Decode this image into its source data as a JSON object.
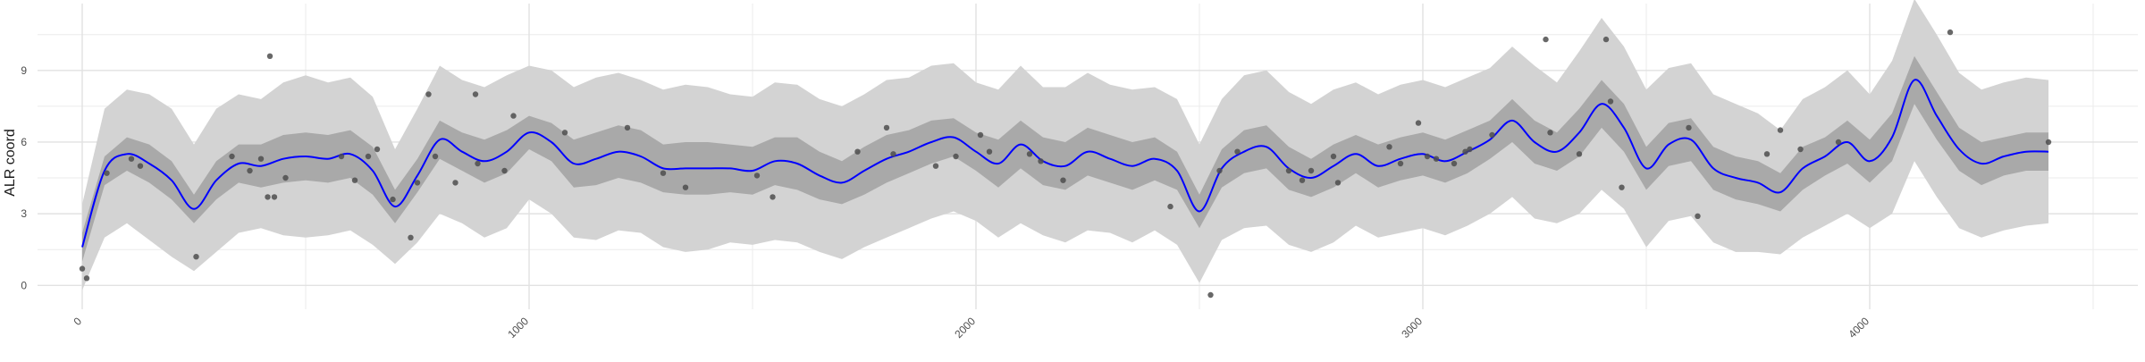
{
  "chart_data": {
    "type": "line",
    "title": "",
    "xlabel": "",
    "ylabel": "ALR coord",
    "xlim": [
      -100,
      4600
    ],
    "ylim": [
      -1.0,
      11.8
    ],
    "x_ticks": [
      0,
      1000,
      2000,
      3000,
      4000
    ],
    "x_tick_labels": [
      "0",
      "1000",
      "2000",
      "3000",
      "4000"
    ],
    "y_ticks": [
      0,
      3,
      6,
      9
    ],
    "y_tick_labels": [
      "0",
      "3",
      "6",
      "9"
    ],
    "grid": true,
    "legend": "none",
    "colors": {
      "mean_line": "#0000ff",
      "inner_band": "#a9a9a9",
      "outer_band": "#d3d3d3",
      "points": "#4d4d4d",
      "grid": "#ebebeb",
      "text": "#4d4d4d"
    },
    "series": [
      {
        "kind": "line",
        "x": [
          0,
          50,
          100,
          150,
          200,
          250,
          300,
          350,
          400,
          450,
          500,
          550,
          600,
          650,
          700,
          750,
          800,
          850,
          900,
          950,
          1000,
          1050,
          1100,
          1150,
          1200,
          1250,
          1300,
          1350,
          1400,
          1450,
          1500,
          1550,
          1600,
          1650,
          1700,
          1750,
          1800,
          1850,
          1900,
          1950,
          2000,
          2050,
          2100,
          2150,
          2200,
          2250,
          2300,
          2350,
          2400,
          2450,
          2500,
          2550,
          2600,
          2650,
          2700,
          2750,
          2800,
          2850,
          2900,
          2950,
          3000,
          3050,
          3100,
          3150,
          3200,
          3250,
          3300,
          3350,
          3400,
          3450,
          3500,
          3550,
          3600,
          3650,
          3700,
          3750,
          3800,
          3850,
          3900,
          3950,
          4000,
          4050,
          4100,
          4150,
          4200,
          4250,
          4300,
          4350,
          4400
        ],
        "y": [
          1.6,
          4.8,
          5.5,
          5.1,
          4.4,
          3.2,
          4.4,
          5.1,
          5.0,
          5.3,
          5.4,
          5.3,
          5.5,
          4.8,
          3.3,
          4.6,
          6.1,
          5.6,
          5.2,
          5.6,
          6.4,
          6.0,
          5.1,
          5.3,
          5.6,
          5.4,
          4.9,
          4.9,
          4.9,
          4.9,
          4.8,
          5.2,
          5.1,
          4.6,
          4.3,
          4.8,
          5.3,
          5.6,
          6.0,
          6.2,
          5.6,
          5.1,
          5.9,
          5.2,
          5.0,
          5.6,
          5.3,
          5.0,
          5.3,
          4.8,
          3.1,
          4.9,
          5.6,
          5.8,
          4.9,
          4.5,
          5.0,
          5.5,
          5.0,
          5.3,
          5.5,
          5.2,
          5.6,
          6.1,
          6.9,
          6.0,
          5.6,
          6.4,
          7.6,
          6.6,
          4.9,
          5.9,
          6.1,
          4.9,
          4.5,
          4.3,
          3.9,
          4.9,
          5.4,
          6.0,
          5.2,
          6.2,
          8.6,
          7.1,
          5.7,
          5.1,
          5.4,
          5.6,
          5.6
        ]
      },
      {
        "kind": "inner_band",
        "x": [
          0,
          50,
          100,
          150,
          200,
          250,
          300,
          350,
          400,
          450,
          500,
          550,
          600,
          650,
          700,
          750,
          800,
          850,
          900,
          950,
          1000,
          1050,
          1100,
          1150,
          1200,
          1250,
          1300,
          1350,
          1400,
          1450,
          1500,
          1550,
          1600,
          1650,
          1700,
          1750,
          1800,
          1850,
          1900,
          1950,
          2000,
          2050,
          2100,
          2150,
          2200,
          2250,
          2300,
          2350,
          2400,
          2450,
          2500,
          2550,
          2600,
          2650,
          2700,
          2750,
          2800,
          2850,
          2900,
          2950,
          3000,
          3050,
          3100,
          3150,
          3200,
          3250,
          3300,
          3350,
          3400,
          3450,
          3500,
          3550,
          3600,
          3650,
          3700,
          3750,
          3800,
          3850,
          3900,
          3950,
          4000,
          4050,
          4100,
          4150,
          4200,
          4250,
          4300,
          4350,
          4400
        ],
        "low": [
          1.0,
          4.2,
          4.8,
          4.3,
          3.6,
          2.6,
          3.6,
          4.3,
          4.1,
          4.3,
          4.4,
          4.3,
          4.5,
          3.8,
          2.6,
          3.9,
          5.3,
          4.8,
          4.3,
          4.7,
          5.7,
          5.2,
          4.1,
          4.2,
          4.5,
          4.3,
          3.9,
          3.8,
          3.8,
          3.9,
          3.8,
          4.2,
          4.0,
          3.6,
          3.4,
          3.8,
          4.3,
          4.7,
          5.1,
          5.4,
          4.8,
          4.1,
          4.9,
          4.2,
          4.0,
          4.6,
          4.3,
          4.0,
          4.4,
          4.0,
          2.4,
          4.1,
          4.7,
          4.9,
          4.0,
          3.7,
          4.1,
          4.7,
          4.1,
          4.4,
          4.6,
          4.3,
          4.7,
          5.3,
          6.0,
          5.1,
          4.8,
          5.4,
          6.6,
          5.6,
          4.0,
          5.0,
          5.2,
          4.0,
          3.6,
          3.4,
          3.1,
          4.0,
          4.6,
          5.1,
          4.3,
          5.2,
          7.6,
          6.1,
          4.8,
          4.2,
          4.6,
          4.8,
          4.8
        ],
        "high": [
          2.2,
          5.4,
          6.2,
          5.9,
          5.2,
          3.8,
          5.2,
          5.9,
          5.9,
          6.3,
          6.4,
          6.3,
          6.5,
          5.8,
          4.0,
          5.3,
          6.9,
          6.4,
          6.1,
          6.5,
          7.1,
          6.8,
          6.1,
          6.4,
          6.7,
          6.5,
          5.9,
          6.0,
          6.0,
          5.9,
          5.8,
          6.2,
          6.2,
          5.6,
          5.2,
          5.8,
          6.3,
          6.5,
          6.9,
          7.0,
          6.4,
          6.1,
          6.9,
          6.2,
          6.0,
          6.6,
          6.3,
          6.0,
          6.2,
          5.6,
          3.8,
          5.7,
          6.5,
          6.7,
          5.8,
          5.3,
          5.9,
          6.3,
          5.9,
          6.2,
          6.4,
          6.1,
          6.5,
          6.9,
          7.8,
          6.9,
          6.4,
          7.4,
          8.6,
          7.6,
          5.8,
          6.8,
          7.0,
          5.8,
          5.4,
          5.2,
          4.7,
          5.8,
          6.2,
          6.9,
          6.1,
          7.2,
          9.6,
          8.1,
          6.6,
          6.0,
          6.2,
          6.4,
          6.4
        ]
      },
      {
        "kind": "outer_band",
        "x": [
          0,
          50,
          100,
          150,
          200,
          250,
          300,
          350,
          400,
          450,
          500,
          550,
          600,
          650,
          700,
          750,
          800,
          850,
          900,
          950,
          1000,
          1050,
          1100,
          1150,
          1200,
          1250,
          1300,
          1350,
          1400,
          1450,
          1500,
          1550,
          1600,
          1650,
          1700,
          1750,
          1800,
          1850,
          1900,
          1950,
          2000,
          2050,
          2100,
          2150,
          2200,
          2250,
          2300,
          2350,
          2400,
          2450,
          2500,
          2550,
          2600,
          2650,
          2700,
          2750,
          2800,
          2850,
          2900,
          2950,
          3000,
          3050,
          3100,
          3150,
          3200,
          3250,
          3300,
          3350,
          3400,
          3450,
          3500,
          3550,
          3600,
          3650,
          3700,
          3750,
          3800,
          3850,
          3900,
          3950,
          4000,
          4050,
          4100,
          4150,
          4200,
          4250,
          4300,
          4350,
          4400
        ],
        "low": [
          -0.2,
          2.0,
          2.6,
          1.9,
          1.2,
          0.6,
          1.4,
          2.2,
          2.4,
          2.1,
          2.0,
          2.1,
          2.3,
          1.7,
          0.9,
          1.8,
          3.0,
          2.6,
          2.0,
          2.4,
          3.6,
          3.0,
          2.0,
          1.9,
          2.3,
          2.2,
          1.6,
          1.4,
          1.5,
          1.8,
          1.7,
          1.9,
          1.8,
          1.4,
          1.1,
          1.6,
          2.0,
          2.4,
          2.8,
          3.1,
          2.7,
          2.0,
          2.6,
          2.1,
          1.8,
          2.3,
          2.2,
          1.8,
          2.3,
          1.7,
          0.1,
          1.9,
          2.4,
          2.5,
          1.7,
          1.4,
          1.8,
          2.5,
          2.0,
          2.2,
          2.4,
          2.1,
          2.5,
          3.0,
          3.7,
          2.8,
          2.6,
          3.0,
          4.0,
          3.2,
          1.6,
          2.7,
          2.9,
          1.8,
          1.4,
          1.4,
          1.3,
          2.0,
          2.5,
          3.0,
          2.4,
          3.0,
          5.2,
          3.7,
          2.4,
          2.0,
          2.3,
          2.5,
          2.6
        ],
        "high": [
          3.4,
          7.4,
          8.2,
          8.0,
          7.4,
          5.9,
          7.4,
          8.0,
          7.8,
          8.5,
          8.8,
          8.5,
          8.7,
          7.9,
          5.7,
          7.4,
          9.2,
          8.6,
          8.3,
          8.8,
          9.2,
          9.0,
          8.3,
          8.7,
          8.9,
          8.6,
          8.2,
          8.4,
          8.3,
          8.0,
          7.9,
          8.5,
          8.4,
          7.8,
          7.5,
          8.0,
          8.6,
          8.7,
          9.2,
          9.3,
          8.5,
          8.2,
          9.2,
          8.3,
          8.3,
          8.9,
          8.4,
          8.2,
          8.3,
          7.8,
          5.9,
          7.8,
          8.8,
          9.0,
          8.1,
          7.6,
          8.2,
          8.5,
          8.0,
          8.4,
          8.6,
          8.3,
          8.7,
          9.1,
          10.0,
          9.2,
          8.5,
          9.8,
          11.2,
          10.0,
          8.2,
          9.1,
          9.3,
          8.0,
          7.6,
          7.2,
          6.5,
          7.8,
          8.3,
          9.0,
          8.0,
          9.4,
          12.0,
          10.5,
          8.9,
          8.2,
          8.5,
          8.7,
          8.6
        ]
      },
      {
        "kind": "points",
        "x": [
          0,
          10,
          55,
          110,
          130,
          255,
          335,
          375,
          400,
          415,
          420,
          430,
          455,
          580,
          610,
          640,
          660,
          695,
          735,
          750,
          775,
          790,
          835,
          880,
          885,
          945,
          965,
          1080,
          1220,
          1300,
          1350,
          1510,
          1545,
          1735,
          1800,
          1815,
          1910,
          1955,
          2010,
          2030,
          2120,
          2145,
          2195,
          2435,
          2525,
          2545,
          2585,
          2700,
          2730,
          2750,
          2800,
          2810,
          2925,
          2950,
          2990,
          3010,
          3030,
          3070,
          3095,
          3105,
          3155,
          3275,
          3285,
          3350,
          3410,
          3420,
          3445,
          3595,
          3615,
          3770,
          3800,
          3845,
          3930,
          4180,
          4400
        ],
        "y": [
          0.7,
          0.3,
          4.7,
          5.3,
          5.0,
          1.2,
          5.4,
          4.8,
          5.3,
          3.7,
          9.6,
          3.7,
          4.5,
          5.4,
          4.4,
          5.4,
          5.7,
          3.6,
          2.0,
          4.3,
          8.0,
          5.4,
          4.3,
          8.0,
          5.1,
          4.8,
          7.1,
          6.4,
          6.6,
          4.7,
          4.1,
          4.6,
          3.7,
          5.6,
          6.6,
          5.5,
          5.0,
          5.4,
          6.3,
          5.6,
          5.5,
          5.2,
          4.4,
          3.3,
          -0.4,
          4.8,
          5.6,
          4.8,
          4.4,
          4.8,
          5.4,
          4.3,
          5.8,
          5.1,
          6.8,
          5.4,
          5.3,
          5.1,
          5.6,
          5.7,
          6.3,
          10.3,
          6.4,
          5.5,
          10.3,
          7.7,
          4.1,
          6.6,
          2.9,
          5.5,
          6.5,
          5.7,
          6.0,
          10.6,
          6.0
        ]
      }
    ]
  }
}
